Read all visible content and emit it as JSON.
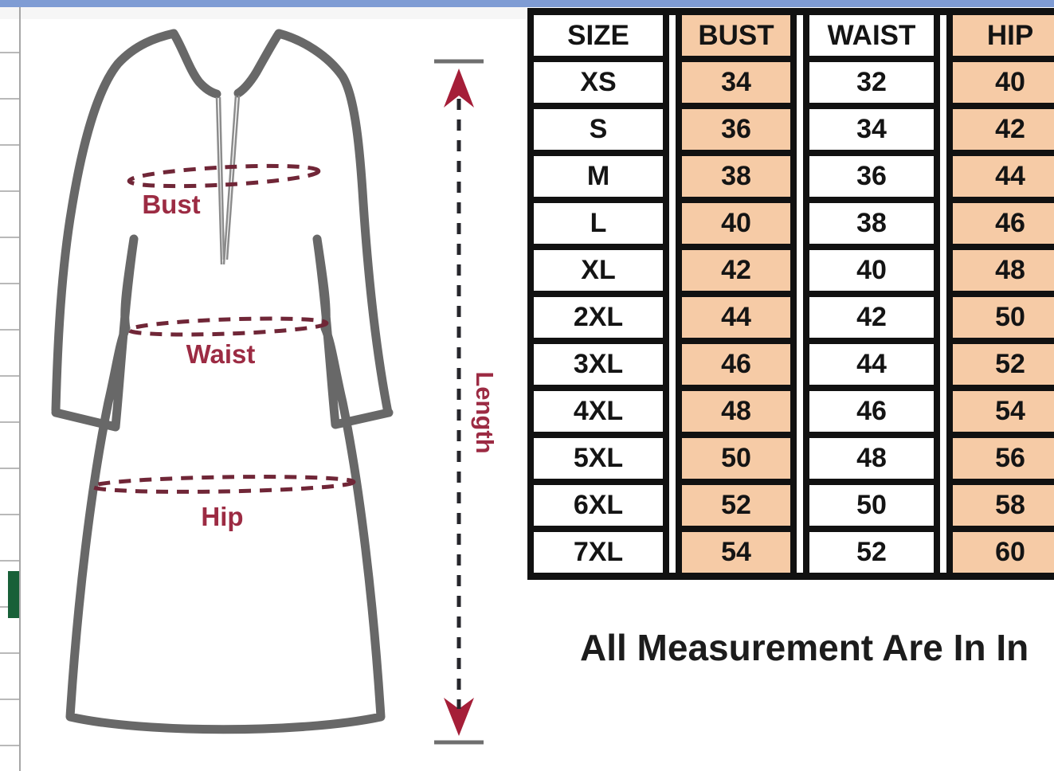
{
  "diagram": {
    "bust_label": "Bust",
    "waist_label": "Waist",
    "hip_label": "Hip",
    "length_label": "Length"
  },
  "size_chart": {
    "columns": [
      "SIZE",
      "BUST",
      "WAIST",
      "HIP"
    ],
    "rows": [
      [
        "XS",
        "34",
        "32",
        "40"
      ],
      [
        "S",
        "36",
        "34",
        "42"
      ],
      [
        "M",
        "38",
        "36",
        "44"
      ],
      [
        "L",
        "40",
        "38",
        "46"
      ],
      [
        "XL",
        "42",
        "40",
        "48"
      ],
      [
        "2XL",
        "44",
        "42",
        "50"
      ],
      [
        "3XL",
        "46",
        "44",
        "52"
      ],
      [
        "4XL",
        "48",
        "46",
        "54"
      ],
      [
        "5XL",
        "50",
        "48",
        "56"
      ],
      [
        "6XL",
        "52",
        "50",
        "58"
      ],
      [
        "7XL",
        "54",
        "52",
        "60"
      ]
    ],
    "column_fills": [
      "#ffffff",
      "#f6cba6",
      "#ffffff",
      "#f6cba6"
    ]
  },
  "footnote": "All Measurement Are In In",
  "colors": {
    "banner_blue": "#7f9cd4",
    "table_border": "#111111",
    "peach": "#f6cba6",
    "label_maroon": "#9c2b43",
    "dash_maroon": "#702637",
    "arrow_red": "#a51e38",
    "outline_gray": "#686868",
    "green_cell": "#186038"
  }
}
